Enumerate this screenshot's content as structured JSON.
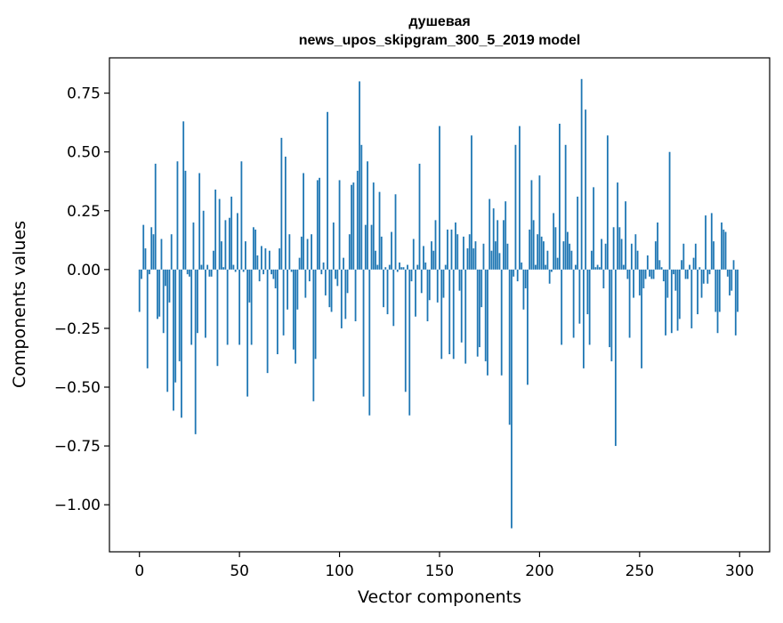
{
  "chart_data": {
    "type": "bar",
    "title_line1": "душевая",
    "title_line2": "news_upos_skipgram_300_5_2019 model",
    "xlabel": "Vector components",
    "ylabel": "Components values",
    "xlim": [
      -15,
      315
    ],
    "ylim": [
      -1.2,
      0.9
    ],
    "xticks": [
      0,
      50,
      100,
      150,
      200,
      250,
      300
    ],
    "xtick_labels": [
      "0",
      "50",
      "100",
      "150",
      "200",
      "250",
      "300"
    ],
    "yticks": [
      0.75,
      0.5,
      0.25,
      0.0,
      -0.25,
      -0.5,
      -0.75,
      -1.0
    ],
    "ytick_labels": [
      "0.75",
      "0.50",
      "0.25",
      "0.00",
      "−0.25",
      "−0.50",
      "−0.75",
      "−1.00"
    ],
    "bar_color": "#1f77b4",
    "values": [
      -0.18,
      -0.04,
      0.19,
      0.09,
      -0.42,
      -0.02,
      0.18,
      0.15,
      0.45,
      -0.21,
      -0.2,
      0.13,
      -0.27,
      -0.07,
      -0.52,
      -0.14,
      0.15,
      -0.6,
      -0.48,
      0.46,
      -0.39,
      -0.63,
      0.63,
      0.42,
      -0.02,
      -0.03,
      -0.32,
      0.2,
      -0.7,
      -0.27,
      0.41,
      0.02,
      0.25,
      -0.29,
      0.02,
      -0.03,
      -0.03,
      0.08,
      0.34,
      -0.41,
      0.3,
      0.12,
      0.01,
      0.21,
      -0.32,
      0.22,
      0.31,
      0.02,
      -0.01,
      0.24,
      -0.32,
      0.46,
      -0.01,
      0.12,
      -0.54,
      -0.14,
      -0.32,
      0.18,
      0.17,
      0.06,
      -0.05,
      0.1,
      -0.02,
      0.09,
      -0.44,
      0.08,
      -0.02,
      -0.04,
      -0.08,
      -0.36,
      0.09,
      0.56,
      -0.28,
      0.48,
      -0.17,
      0.15,
      -0.01,
      -0.34,
      -0.4,
      -0.17,
      0.05,
      0.14,
      0.41,
      -0.12,
      0.13,
      -0.05,
      0.15,
      -0.56,
      -0.38,
      0.38,
      0.39,
      -0.02,
      0.03,
      -0.11,
      0.67,
      -0.16,
      -0.18,
      0.2,
      -0.04,
      -0.07,
      0.38,
      -0.25,
      0.05,
      -0.21,
      -0.1,
      0.15,
      0.36,
      0.37,
      -0.22,
      0.42,
      0.8,
      0.53,
      -0.54,
      0.19,
      0.46,
      -0.62,
      0.19,
      0.37,
      0.08,
      0.02,
      0.33,
      0.14,
      -0.16,
      0.01,
      -0.19,
      0.02,
      0.16,
      -0.24,
      0.32,
      -0.01,
      0.03,
      0.01,
      0.01,
      -0.52,
      0.02,
      -0.62,
      -0.05,
      0.13,
      -0.2,
      0.02,
      0.45,
      -0.1,
      0.1,
      0.03,
      -0.22,
      -0.13,
      0.12,
      0.08,
      0.21,
      -0.14,
      0.61,
      -0.38,
      -0.12,
      0.02,
      0.17,
      -0.36,
      0.17,
      -0.38,
      0.2,
      0.15,
      -0.09,
      -0.31,
      0.14,
      -0.4,
      0.09,
      0.15,
      0.57,
      0.09,
      0.12,
      -0.37,
      -0.33,
      -0.16,
      0.11,
      -0.39,
      -0.45,
      0.3,
      0.08,
      0.26,
      0.12,
      0.21,
      0.07,
      -0.45,
      0.21,
      0.29,
      0.11,
      -0.66,
      -1.1,
      -0.03,
      0.53,
      -0.05,
      0.61,
      0.03,
      -0.17,
      -0.08,
      -0.49,
      0.17,
      0.38,
      0.21,
      0.02,
      0.15,
      0.4,
      0.14,
      0.12,
      0.02,
      0.08,
      -0.06,
      -0.01,
      0.24,
      0.18,
      0.05,
      0.62,
      -0.32,
      0.12,
      0.53,
      0.16,
      0.11,
      0.08,
      -0.29,
      0.02,
      0.31,
      -0.23,
      0.81,
      -0.42,
      0.68,
      -0.19,
      -0.32,
      0.08,
      0.35,
      0.01,
      0.02,
      0.01,
      0.13,
      -0.08,
      0.11,
      0.57,
      -0.33,
      -0.39,
      0.18,
      -0.75,
      0.37,
      0.18,
      0.13,
      0.02,
      0.29,
      -0.04,
      -0.29,
      0.11,
      -0.12,
      0.15,
      0.08,
      -0.11,
      -0.42,
      -0.08,
      -0.04,
      0.06,
      -0.03,
      -0.04,
      -0.04,
      0.12,
      0.2,
      0.04,
      0.01,
      -0.05,
      -0.28,
      -0.12,
      0.5,
      -0.27,
      -0.02,
      -0.09,
      -0.26,
      -0.21,
      0.04,
      0.11,
      -0.04,
      -0.04,
      0.02,
      -0.25,
      0.05,
      0.11,
      -0.19,
      0.01,
      -0.12,
      -0.06,
      0.23,
      -0.06,
      -0.02,
      0.24,
      0.12,
      -0.18,
      -0.27,
      -0.18,
      0.2,
      0.17,
      0.16,
      -0.03,
      -0.11,
      -0.09,
      0.04,
      -0.28,
      -0.18
    ]
  }
}
